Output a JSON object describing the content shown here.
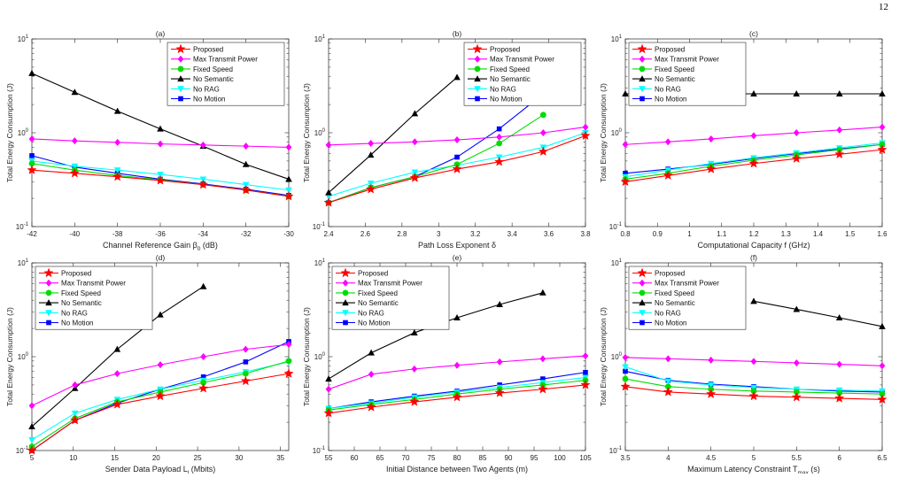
{
  "page_number": "12",
  "caption": "",
  "colors": {
    "Proposed": "#ff0000",
    "Max Transmit Power": "#ff00ff",
    "Fixed Speed": "#00dd00",
    "No Semantic": "#000000",
    "No RAG": "#00ffff",
    "No Motion": "#0000ff"
  },
  "markers": {
    "Proposed": "star",
    "Max Transmit Power": "diamond",
    "Fixed Speed": "circle",
    "No Semantic": "triangle",
    "No RAG": "triangle-down",
    "No Motion": "square"
  },
  "chart_data": [
    {
      "type": "line",
      "title": "(a)",
      "xlabel": "Channel Reference Gain β0 (dB)",
      "ylabel": "Total Energy Consumption (J)",
      "yscale": "log",
      "ylim": [
        0.1,
        10
      ],
      "xlim": [
        -42,
        -30
      ],
      "xticks": [
        "-42",
        "-40",
        "-38",
        "-36",
        "-34",
        "-32",
        "-30"
      ],
      "yticks": [
        "10-1",
        "100",
        "101"
      ],
      "legend": "top-right",
      "x": [
        -42,
        -40,
        -38,
        -36,
        -34,
        -32,
        -30
      ],
      "series": [
        {
          "name": "Proposed",
          "values": [
            0.4,
            0.37,
            0.34,
            0.31,
            0.28,
            0.245,
            0.21
          ]
        },
        {
          "name": "Max Transmit Power",
          "values": [
            0.86,
            0.82,
            0.79,
            0.76,
            0.74,
            0.72,
            0.7
          ]
        },
        {
          "name": "Fixed Speed",
          "values": [
            0.47,
            0.4,
            0.35,
            0.315,
            0.28,
            0.245,
            0.21
          ]
        },
        {
          "name": "No Semantic",
          "values": [
            4.3,
            2.7,
            1.7,
            1.1,
            0.72,
            0.46,
            0.32
          ]
        },
        {
          "name": "No RAG",
          "values": [
            0.5,
            0.44,
            0.4,
            0.36,
            0.32,
            0.28,
            0.245
          ]
        },
        {
          "name": "No Motion",
          "values": [
            0.57,
            0.43,
            0.37,
            0.32,
            0.285,
            0.25,
            0.215
          ]
        }
      ]
    },
    {
      "type": "line",
      "title": "(b)",
      "xlabel": "Path Loss Exponent δ",
      "ylabel": "Total Energy Consumption (J)",
      "yscale": "log",
      "ylim": [
        0.1,
        10
      ],
      "xlim": [
        2.4,
        3.8
      ],
      "xticks": [
        "2.4",
        "2.6",
        "2.8",
        "3",
        "3.2",
        "3.4",
        "3.6",
        "3.8"
      ],
      "yticks": [
        "10-1",
        "100",
        "101"
      ],
      "legend": "top-right",
      "series": [
        {
          "name": "Proposed",
          "x": [
            2.4,
            2.63,
            2.87,
            3.1,
            3.33,
            3.57,
            3.8
          ],
          "values": [
            0.18,
            0.25,
            0.33,
            0.41,
            0.49,
            0.63,
            0.93
          ]
        },
        {
          "name": "Max Transmit Power",
          "x": [
            2.4,
            2.63,
            2.87,
            3.1,
            3.33,
            3.57,
            3.8
          ],
          "values": [
            0.74,
            0.77,
            0.8,
            0.84,
            0.9,
            1.0,
            1.15
          ]
        },
        {
          "name": "Fixed Speed",
          "x": [
            2.4,
            2.63,
            2.87,
            3.1,
            3.33,
            3.57
          ],
          "values": [
            0.18,
            0.26,
            0.34,
            0.46,
            0.77,
            1.55
          ]
        },
        {
          "name": "No Semantic",
          "x": [
            2.4,
            2.63,
            2.87,
            3.1
          ],
          "values": [
            0.23,
            0.58,
            1.6,
            3.9
          ]
        },
        {
          "name": "No RAG",
          "x": [
            2.4,
            2.63,
            2.87,
            3.1,
            3.33,
            3.57,
            3.8
          ],
          "values": [
            0.21,
            0.29,
            0.38,
            0.45,
            0.55,
            0.7,
            1.0
          ]
        },
        {
          "name": "No Motion",
          "x": [
            2.4,
            2.63,
            2.87,
            3.1,
            3.33,
            3.57
          ],
          "values": [
            0.18,
            0.26,
            0.34,
            0.55,
            1.1,
            2.6
          ]
        }
      ]
    },
    {
      "type": "line",
      "title": "(c)",
      "xlabel": "Computational Capacity f (GHz)",
      "ylabel": "Total Energy Consumption (J)",
      "yscale": "log",
      "ylim": [
        0.1,
        10
      ],
      "xlim": [
        0.8,
        1.6
      ],
      "xticks": [
        "0.8",
        "0.9",
        "1",
        "1.1",
        "1.2",
        "1.3",
        "1.4",
        "1.5",
        "1.6"
      ],
      "yticks": [
        "10-1",
        "100",
        "101"
      ],
      "legend": "top-left",
      "x": [
        0.8,
        0.933,
        1.067,
        1.2,
        1.333,
        1.467,
        1.6
      ],
      "series": [
        {
          "name": "Proposed",
          "values": [
            0.3,
            0.35,
            0.41,
            0.47,
            0.53,
            0.59,
            0.66
          ]
        },
        {
          "name": "Max Transmit Power",
          "values": [
            0.75,
            0.8,
            0.86,
            0.93,
            1.0,
            1.07,
            1.15
          ]
        },
        {
          "name": "Fixed Speed",
          "values": [
            0.32,
            0.37,
            0.44,
            0.51,
            0.58,
            0.66,
            0.75
          ]
        },
        {
          "name": "No Semantic",
          "values": [
            2.6,
            2.6,
            2.6,
            2.6,
            2.6,
            2.6,
            2.6
          ]
        },
        {
          "name": "No RAG",
          "values": [
            0.34,
            0.4,
            0.47,
            0.54,
            0.61,
            0.69,
            0.78
          ]
        },
        {
          "name": "No Motion",
          "values": [
            0.37,
            0.41,
            0.46,
            0.53,
            0.6,
            0.67,
            0.75
          ]
        }
      ]
    },
    {
      "type": "line",
      "title": "(d)",
      "xlabel": "Sender Data Payload Ll (Mbits)",
      "ylabel": "Total Energy Consumption (J)",
      "yscale": "log",
      "ylim": [
        0.1,
        10
      ],
      "xlim": [
        5,
        36
      ],
      "xticks": [
        "5",
        "10",
        "15",
        "20",
        "25",
        "30",
        "35"
      ],
      "yticks": [
        "10-1",
        "100",
        "101"
      ],
      "legend": "top-left",
      "series": [
        {
          "name": "Proposed",
          "x": [
            5,
            10.2,
            15.3,
            20.5,
            25.7,
            30.8,
            36
          ],
          "values": [
            0.1,
            0.21,
            0.31,
            0.38,
            0.46,
            0.55,
            0.66
          ]
        },
        {
          "name": "Max Transmit Power",
          "x": [
            5,
            10.2,
            15.3,
            20.5,
            25.7,
            30.8,
            36
          ],
          "values": [
            0.3,
            0.5,
            0.66,
            0.82,
            1.0,
            1.2,
            1.35
          ]
        },
        {
          "name": "Fixed Speed",
          "x": [
            5,
            10.2,
            15.3,
            20.5,
            25.7,
            30.8,
            36
          ],
          "values": [
            0.11,
            0.22,
            0.33,
            0.42,
            0.53,
            0.66,
            0.9
          ]
        },
        {
          "name": "No Semantic",
          "x": [
            5,
            10.2,
            15.3,
            20.5,
            25.7
          ],
          "values": [
            0.18,
            0.46,
            1.2,
            2.8,
            5.6
          ]
        },
        {
          "name": "No RAG",
          "x": [
            5,
            10.2,
            15.3,
            20.5,
            25.7,
            30.8,
            36
          ],
          "values": [
            0.13,
            0.25,
            0.35,
            0.45,
            0.56,
            0.69,
            0.88
          ]
        },
        {
          "name": "No Motion",
          "x": [
            5,
            10.2,
            15.3,
            20.5,
            25.7,
            30.8,
            36
          ],
          "values": [
            0.1,
            0.21,
            0.32,
            0.45,
            0.61,
            0.88,
            1.45
          ]
        }
      ]
    },
    {
      "type": "line",
      "title": "(e)",
      "xlabel": "Initial Distance between Two Agents (m)",
      "ylabel": "Total Energy Consumption (J)",
      "yscale": "log",
      "ylim": [
        0.1,
        10
      ],
      "xlim": [
        55,
        105
      ],
      "xticks": [
        "55",
        "60",
        "65",
        "70",
        "75",
        "80",
        "85",
        "90",
        "95",
        "100",
        "105"
      ],
      "yticks": [
        "10-1",
        "100",
        "101"
      ],
      "legend": "top-left",
      "series": [
        {
          "name": "Proposed",
          "x": [
            55,
            63.3,
            71.7,
            80,
            88.3,
            96.7,
            105
          ],
          "values": [
            0.25,
            0.29,
            0.33,
            0.37,
            0.41,
            0.45,
            0.5
          ]
        },
        {
          "name": "Max Transmit Power",
          "x": [
            55,
            63.3,
            71.7,
            80,
            88.3,
            96.7,
            105
          ],
          "values": [
            0.45,
            0.65,
            0.74,
            0.81,
            0.88,
            0.95,
            1.02
          ]
        },
        {
          "name": "Fixed Speed",
          "x": [
            55,
            63.3,
            71.7,
            80,
            88.3,
            96.7,
            105
          ],
          "values": [
            0.27,
            0.31,
            0.35,
            0.4,
            0.45,
            0.5,
            0.56
          ]
        },
        {
          "name": "No Semantic",
          "x": [
            55,
            63.3,
            71.7,
            80,
            88.3,
            96.7
          ],
          "values": [
            0.58,
            1.1,
            1.8,
            2.6,
            3.6,
            4.8
          ]
        },
        {
          "name": "No RAG",
          "x": [
            55,
            63.3,
            71.7,
            80,
            88.3,
            96.7,
            105
          ],
          "values": [
            0.28,
            0.32,
            0.37,
            0.42,
            0.47,
            0.53,
            0.6
          ]
        },
        {
          "name": "No Motion",
          "x": [
            55,
            63.3,
            71.7,
            80,
            88.3,
            96.7,
            105
          ],
          "values": [
            0.28,
            0.33,
            0.38,
            0.43,
            0.5,
            0.58,
            0.68
          ]
        }
      ]
    },
    {
      "type": "line",
      "title": "(f)",
      "xlabel": "Maximum Latency Constraint Tmax (s)",
      "ylabel": "Total Energy Consumption (J)",
      "yscale": "log",
      "ylim": [
        0.1,
        10
      ],
      "xlim": [
        3.5,
        6.5
      ],
      "xticks": [
        "3.5",
        "4",
        "4.5",
        "5",
        "5.5",
        "6",
        "6.5"
      ],
      "yticks": [
        "10-1",
        "100",
        "101"
      ],
      "legend": "top-left",
      "series": [
        {
          "name": "Proposed",
          "x": [
            3.5,
            4,
            4.5,
            5,
            5.5,
            6,
            6.5
          ],
          "values": [
            0.48,
            0.42,
            0.4,
            0.38,
            0.37,
            0.36,
            0.35
          ]
        },
        {
          "name": "Max Transmit Power",
          "x": [
            3.5,
            4,
            4.5,
            5,
            5.5,
            6,
            6.5
          ],
          "values": [
            0.98,
            0.95,
            0.92,
            0.89,
            0.86,
            0.83,
            0.8
          ]
        },
        {
          "name": "Fixed Speed",
          "x": [
            3.5,
            4,
            4.5,
            5,
            5.5,
            6,
            6.5
          ],
          "values": [
            0.58,
            0.48,
            0.45,
            0.43,
            0.42,
            0.41,
            0.4
          ]
        },
        {
          "name": "No Semantic",
          "x": [
            5,
            5.5,
            6,
            6.5
          ],
          "values": [
            3.9,
            3.2,
            2.6,
            2.1
          ]
        },
        {
          "name": "No RAG",
          "x": [
            3.5,
            4,
            4.5,
            5,
            5.5,
            6,
            6.5
          ],
          "values": [
            0.78,
            0.55,
            0.5,
            0.47,
            0.45,
            0.44,
            0.43
          ]
        },
        {
          "name": "No Motion",
          "x": [
            3.5,
            4,
            4.5,
            5,
            5.5,
            6,
            6.5
          ],
          "values": [
            0.7,
            0.56,
            0.51,
            0.48,
            0.45,
            0.43,
            0.42
          ]
        }
      ]
    }
  ]
}
